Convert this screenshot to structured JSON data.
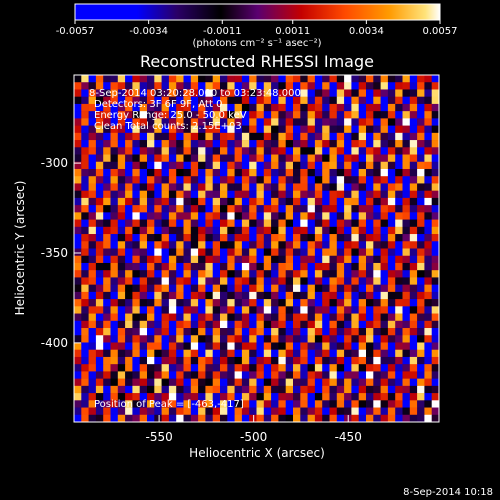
{
  "chart_data": {
    "type": "heatmap",
    "title": "Reconstructed RHESSI Image",
    "xlabel": "Heliocentric X (arcsec)",
    "ylabel": "Heliocentric Y (arcsec)",
    "xlim": [
      -595,
      -402
    ],
    "ylim": [
      -444,
      -251
    ],
    "xticks": [
      -550,
      -500,
      -450
    ],
    "yticks": [
      -300,
      -350,
      -400
    ],
    "colorbar": {
      "label": "(photons cm⁻² s⁻¹ asec⁻²)",
      "range": [
        -0.0057,
        0.0057
      ],
      "tick_values": [
        -0.0057,
        -0.0034,
        -0.0011,
        0.0011,
        0.0034,
        0.0057
      ],
      "tick_labels": [
        "-0.0057",
        "-0.0034",
        "-0.0011",
        "0.0011",
        "0.0034",
        "0.0057"
      ]
    },
    "annotations": [
      "8-Sep-2014 03:20:28.000 to 03:23:48.000",
      "Detectors: 3F 6F 9F, Att 0",
      "Energy Range: 25.0 - 50.0 keV",
      "Clean    Total counts: 2.15E+03",
      "Position of Peak = [-463,-417]"
    ]
  },
  "footer": {
    "timestamp": "8-Sep-2014 10:18"
  }
}
